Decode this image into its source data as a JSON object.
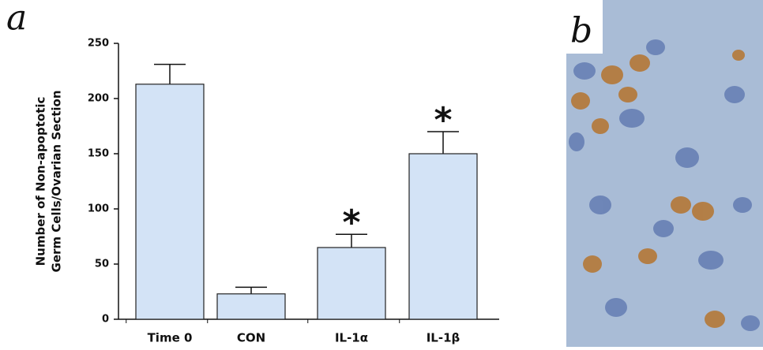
{
  "chart_data": {
    "type": "bar",
    "panel_label": "a",
    "panel_b_label": "b",
    "y_label": [
      "Number of Non-apoptotic",
      "Germ Cells/Ovarian Section"
    ],
    "categories": [
      "Time 0",
      "CON",
      "IL-1α",
      "IL-1β"
    ],
    "values": [
      213,
      23,
      65,
      150
    ],
    "errors": [
      18,
      6,
      12,
      20
    ],
    "color": "#d3e3f6",
    "ylim": [
      0,
      250
    ],
    "yticks": [
      0,
      50,
      100,
      150,
      200,
      250
    ],
    "annotations": [
      {
        "text": "*",
        "category": "IL-1α"
      },
      {
        "text": "*",
        "category": "IL-1β"
      }
    ]
  }
}
